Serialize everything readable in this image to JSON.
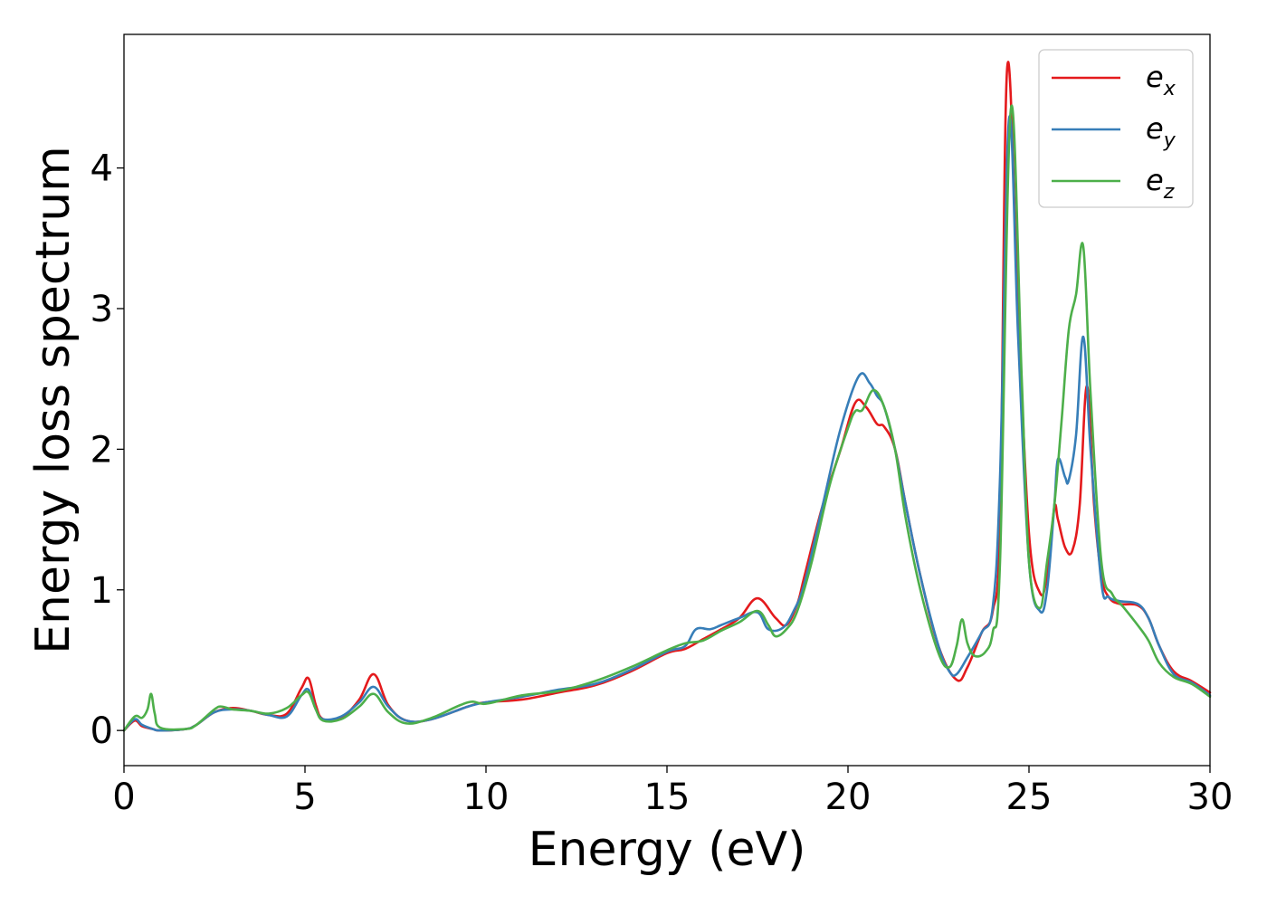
{
  "chart_data": {
    "type": "line",
    "xlabel": "Energy (eV)",
    "ylabel": "Energy loss spectrum",
    "xlim": [
      0,
      30
    ],
    "ylim": [
      -0.25,
      4.95
    ],
    "xticks": [
      0,
      5,
      10,
      15,
      20,
      25,
      30
    ],
    "yticks": [
      0,
      1,
      2,
      3,
      4
    ],
    "legend_position": "top-right",
    "grid": false,
    "series": [
      {
        "name": "e_x",
        "label_base": "e",
        "label_sub": "x",
        "color": "#e41a1c",
        "points": [
          [
            0,
            0
          ],
          [
            0.3,
            0.07
          ],
          [
            0.5,
            0.03
          ],
          [
            0.8,
            0.01
          ],
          [
            1,
            0.0
          ],
          [
            1.7,
            0.01
          ],
          [
            2,
            0.04
          ],
          [
            2.5,
            0.13
          ],
          [
            3,
            0.16
          ],
          [
            3.5,
            0.14
          ],
          [
            4,
            0.11
          ],
          [
            4.5,
            0.12
          ],
          [
            4.9,
            0.3
          ],
          [
            5.1,
            0.37
          ],
          [
            5.3,
            0.18
          ],
          [
            5.5,
            0.08
          ],
          [
            6,
            0.09
          ],
          [
            6.5,
            0.22
          ],
          [
            6.9,
            0.4
          ],
          [
            7.3,
            0.18
          ],
          [
            7.8,
            0.07
          ],
          [
            8.5,
            0.08
          ],
          [
            9.5,
            0.17
          ],
          [
            10,
            0.2
          ],
          [
            11,
            0.22
          ],
          [
            12,
            0.27
          ],
          [
            13,
            0.32
          ],
          [
            14,
            0.42
          ],
          [
            15,
            0.55
          ],
          [
            15.5,
            0.58
          ],
          [
            16,
            0.65
          ],
          [
            16.5,
            0.72
          ],
          [
            17,
            0.8
          ],
          [
            17.5,
            0.94
          ],
          [
            18,
            0.8
          ],
          [
            18.3,
            0.75
          ],
          [
            18.6,
            0.9
          ],
          [
            18.8,
            1.1
          ],
          [
            19.3,
            1.6
          ],
          [
            19.8,
            2.0
          ],
          [
            20.2,
            2.33
          ],
          [
            20.5,
            2.3
          ],
          [
            20.8,
            2.18
          ],
          [
            21,
            2.16
          ],
          [
            21.3,
            2.0
          ],
          [
            21.6,
            1.6
          ],
          [
            22,
            1.1
          ],
          [
            22.5,
            0.6
          ],
          [
            23,
            0.36
          ],
          [
            23.3,
            0.45
          ],
          [
            23.7,
            0.7
          ],
          [
            24,
            0.85
          ],
          [
            24.2,
            1.5
          ],
          [
            24.4,
            4.72
          ],
          [
            24.7,
            3.0
          ],
          [
            25,
            1.4
          ],
          [
            25.3,
            0.98
          ],
          [
            25.5,
            1.1
          ],
          [
            25.7,
            1.58
          ],
          [
            25.8,
            1.5
          ],
          [
            26,
            1.3
          ],
          [
            26.2,
            1.28
          ],
          [
            26.4,
            1.6
          ],
          [
            26.6,
            2.45
          ],
          [
            26.8,
            1.6
          ],
          [
            27,
            1.1
          ],
          [
            27.2,
            0.95
          ],
          [
            27.5,
            0.9
          ],
          [
            28,
            0.89
          ],
          [
            28.3,
            0.8
          ],
          [
            28.6,
            0.6
          ],
          [
            29,
            0.42
          ],
          [
            29.5,
            0.35
          ],
          [
            30,
            0.27
          ]
        ]
      },
      {
        "name": "e_y",
        "label_base": "e",
        "label_sub": "y",
        "color": "#377eb8",
        "points": [
          [
            0,
            0
          ],
          [
            0.3,
            0.08
          ],
          [
            0.5,
            0.04
          ],
          [
            0.8,
            0.01
          ],
          [
            1,
            0.0
          ],
          [
            1.7,
            0.01
          ],
          [
            2,
            0.04
          ],
          [
            2.5,
            0.13
          ],
          [
            3,
            0.15
          ],
          [
            3.5,
            0.14
          ],
          [
            4,
            0.11
          ],
          [
            4.5,
            0.1
          ],
          [
            4.9,
            0.25
          ],
          [
            5.1,
            0.29
          ],
          [
            5.3,
            0.15
          ],
          [
            5.5,
            0.08
          ],
          [
            6,
            0.1
          ],
          [
            6.5,
            0.2
          ],
          [
            6.9,
            0.31
          ],
          [
            7.3,
            0.17
          ],
          [
            7.8,
            0.07
          ],
          [
            8.5,
            0.08
          ],
          [
            9.5,
            0.17
          ],
          [
            10,
            0.2
          ],
          [
            11,
            0.24
          ],
          [
            12,
            0.29
          ],
          [
            13,
            0.33
          ],
          [
            14,
            0.43
          ],
          [
            15,
            0.56
          ],
          [
            15.5,
            0.6
          ],
          [
            15.8,
            0.72
          ],
          [
            16.2,
            0.72
          ],
          [
            16.5,
            0.75
          ],
          [
            17,
            0.8
          ],
          [
            17.5,
            0.84
          ],
          [
            17.8,
            0.72
          ],
          [
            18.2,
            0.73
          ],
          [
            18.5,
            0.85
          ],
          [
            18.8,
            1.05
          ],
          [
            19.3,
            1.6
          ],
          [
            19.8,
            2.15
          ],
          [
            20.3,
            2.52
          ],
          [
            20.6,
            2.47
          ],
          [
            20.8,
            2.38
          ],
          [
            21,
            2.3
          ],
          [
            21.3,
            2.0
          ],
          [
            21.6,
            1.6
          ],
          [
            22,
            1.1
          ],
          [
            22.5,
            0.6
          ],
          [
            22.8,
            0.42
          ],
          [
            23,
            0.4
          ],
          [
            23.3,
            0.52
          ],
          [
            23.7,
            0.7
          ],
          [
            24,
            0.88
          ],
          [
            24.2,
            1.8
          ],
          [
            24.45,
            4.35
          ],
          [
            24.7,
            2.8
          ],
          [
            25,
            1.2
          ],
          [
            25.3,
            0.85
          ],
          [
            25.5,
            1.0
          ],
          [
            25.7,
            1.6
          ],
          [
            25.8,
            1.93
          ],
          [
            26,
            1.8
          ],
          [
            26.1,
            1.78
          ],
          [
            26.3,
            2.1
          ],
          [
            26.5,
            2.8
          ],
          [
            26.7,
            2.0
          ],
          [
            27,
            1.05
          ],
          [
            27.2,
            0.95
          ],
          [
            27.5,
            0.92
          ],
          [
            28,
            0.9
          ],
          [
            28.3,
            0.8
          ],
          [
            28.6,
            0.6
          ],
          [
            29,
            0.4
          ],
          [
            29.5,
            0.34
          ],
          [
            30,
            0.25
          ]
        ]
      },
      {
        "name": "e_z",
        "label_base": "e",
        "label_sub": "z",
        "color": "#4daf4a",
        "points": [
          [
            0,
            0
          ],
          [
            0.3,
            0.1
          ],
          [
            0.5,
            0.09
          ],
          [
            0.65,
            0.15
          ],
          [
            0.75,
            0.26
          ],
          [
            0.85,
            0.12
          ],
          [
            1,
            0.02
          ],
          [
            1.7,
            0.01
          ],
          [
            2,
            0.04
          ],
          [
            2.5,
            0.15
          ],
          [
            2.7,
            0.17
          ],
          [
            3,
            0.15
          ],
          [
            3.5,
            0.14
          ],
          [
            4,
            0.12
          ],
          [
            4.5,
            0.16
          ],
          [
            4.9,
            0.25
          ],
          [
            5.1,
            0.27
          ],
          [
            5.3,
            0.15
          ],
          [
            5.5,
            0.07
          ],
          [
            6,
            0.08
          ],
          [
            6.5,
            0.17
          ],
          [
            6.9,
            0.26
          ],
          [
            7.3,
            0.13
          ],
          [
            7.8,
            0.05
          ],
          [
            8.5,
            0.09
          ],
          [
            9.5,
            0.2
          ],
          [
            10,
            0.19
          ],
          [
            11,
            0.25
          ],
          [
            12,
            0.28
          ],
          [
            13,
            0.35
          ],
          [
            14,
            0.45
          ],
          [
            15,
            0.57
          ],
          [
            15.5,
            0.62
          ],
          [
            16,
            0.64
          ],
          [
            16.5,
            0.71
          ],
          [
            17,
            0.77
          ],
          [
            17.5,
            0.85
          ],
          [
            17.8,
            0.75
          ],
          [
            18,
            0.67
          ],
          [
            18.3,
            0.72
          ],
          [
            18.6,
            0.85
          ],
          [
            19,
            1.2
          ],
          [
            19.5,
            1.75
          ],
          [
            20,
            2.15
          ],
          [
            20.2,
            2.27
          ],
          [
            20.4,
            2.28
          ],
          [
            20.7,
            2.42
          ],
          [
            21,
            2.3
          ],
          [
            21.3,
            2.0
          ],
          [
            21.6,
            1.5
          ],
          [
            22,
            1.0
          ],
          [
            22.5,
            0.55
          ],
          [
            22.8,
            0.45
          ],
          [
            23,
            0.6
          ],
          [
            23.15,
            0.79
          ],
          [
            23.3,
            0.62
          ],
          [
            23.5,
            0.53
          ],
          [
            23.8,
            0.56
          ],
          [
            24,
            0.7
          ],
          [
            24.2,
            1.2
          ],
          [
            24.5,
            4.42
          ],
          [
            24.8,
            2.5
          ],
          [
            25,
            1.2
          ],
          [
            25.3,
            0.87
          ],
          [
            25.5,
            1.2
          ],
          [
            25.7,
            1.6
          ],
          [
            25.9,
            2.2
          ],
          [
            26.1,
            2.85
          ],
          [
            26.3,
            3.1
          ],
          [
            26.5,
            3.44
          ],
          [
            26.7,
            2.4
          ],
          [
            27,
            1.2
          ],
          [
            27.3,
            0.97
          ],
          [
            27.6,
            0.88
          ],
          [
            28,
            0.75
          ],
          [
            28.3,
            0.64
          ],
          [
            28.6,
            0.48
          ],
          [
            29,
            0.38
          ],
          [
            29.5,
            0.33
          ],
          [
            30,
            0.24
          ]
        ]
      }
    ]
  }
}
